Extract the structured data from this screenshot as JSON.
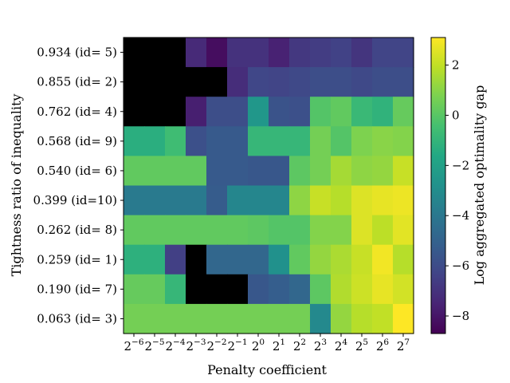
{
  "chart_data": {
    "type": "heatmap",
    "xlabel": "Penalty coefficient",
    "ylabel": "Tightness ratio of inequality",
    "colorbar_label": "Log aggregated optimality gap",
    "colorbar_ticks": [
      2,
      0,
      -2,
      -4,
      -6,
      -8
    ],
    "colorbar_ticks_text": [
      "2",
      "0",
      "−2",
      "−4",
      "−6",
      "−8"
    ],
    "colormap": "viridis",
    "vmin": -8.7,
    "vmax": 3.1,
    "x_ticks": [
      {
        "base": "2",
        "exp": "−6"
      },
      {
        "base": "2",
        "exp": "−5"
      },
      {
        "base": "2",
        "exp": "−4"
      },
      {
        "base": "2",
        "exp": "−3"
      },
      {
        "base": "2",
        "exp": "−2"
      },
      {
        "base": "2",
        "exp": "−1"
      },
      {
        "base": "2",
        "exp": "0"
      },
      {
        "base": "2",
        "exp": "1"
      },
      {
        "base": "2",
        "exp": "2"
      },
      {
        "base": "2",
        "exp": "3"
      },
      {
        "base": "2",
        "exp": "4"
      },
      {
        "base": "2",
        "exp": "5"
      },
      {
        "base": "2",
        "exp": "6"
      },
      {
        "base": "2",
        "exp": "7"
      }
    ],
    "y_categories": [
      "0.934 (id= 5)",
      "0.855 (id= 2)",
      "0.762 (id= 4)",
      "0.568 (id= 9)",
      "0.540 (id= 6)",
      "0.399 (id=10)",
      "0.262 (id= 8)",
      "0.259 (id= 1)",
      "0.190 (id= 7)",
      "0.063 (id= 3)"
    ],
    "missing_color": "#000000",
    "values": [
      [
        null,
        null,
        null,
        -7.3,
        -8.3,
        -7.0,
        -7.0,
        -7.6,
        -6.8,
        -6.6,
        -6.4,
        -6.9,
        -6.3,
        -6.3
      ],
      [
        null,
        null,
        null,
        null,
        null,
        -7.2,
        -6.2,
        -6.3,
        -6.1,
        -5.9,
        -5.9,
        -6.1,
        -5.9,
        -5.9
      ],
      [
        null,
        null,
        null,
        -7.7,
        -5.9,
        -5.9,
        -2.5,
        -5.7,
        -5.8,
        -0.1,
        0.2,
        -0.8,
        -1.1,
        0.3
      ],
      [
        -1.3,
        -1.3,
        -0.6,
        -5.8,
        -5.4,
        -5.4,
        -0.9,
        -0.9,
        -0.9,
        0.6,
        -0.1,
        0.8,
        1.0,
        0.9
      ],
      [
        0.2,
        0.2,
        0.2,
        0.2,
        -5.4,
        -5.4,
        -5.5,
        -5.5,
        0.1,
        0.6,
        1.5,
        1.1,
        1.2,
        2.1
      ],
      [
        -3.9,
        -3.9,
        -3.9,
        -3.9,
        -5.3,
        -3.3,
        -3.3,
        -3.3,
        1.1,
        2.1,
        1.8,
        2.5,
        2.7,
        2.8
      ],
      [
        0.2,
        0.2,
        0.2,
        0.2,
        0.2,
        0.2,
        0.1,
        -0.1,
        -0.1,
        0.9,
        0.9,
        2.5,
        1.9,
        2.6
      ],
      [
        -1.2,
        -1.2,
        -6.5,
        null,
        -4.8,
        -4.8,
        -4.8,
        -2.8,
        0.2,
        1.2,
        1.6,
        2.1,
        2.9,
        1.8
      ],
      [
        0.3,
        0.3,
        -0.9,
        null,
        null,
        null,
        -5.5,
        -5.2,
        -4.8,
        0.1,
        1.7,
        2.2,
        2.7,
        2.3
      ],
      [
        0.6,
        0.6,
        0.6,
        0.6,
        0.6,
        0.6,
        0.6,
        0.6,
        0.6,
        -3.2,
        1.2,
        1.8,
        2.0,
        3.1
      ]
    ]
  }
}
